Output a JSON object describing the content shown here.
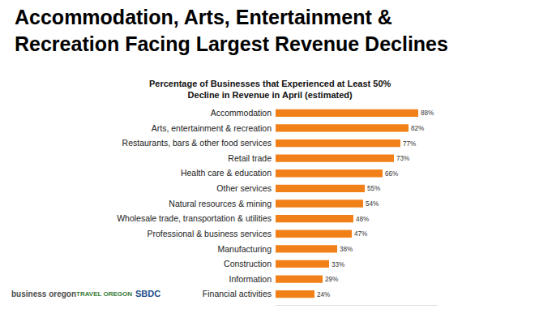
{
  "chart_data": {
    "type": "bar",
    "orientation": "horizontal",
    "title": [
      "Accommodation, Arts, Entertainment &",
      "Recreation Facing Largest Revenue Declines"
    ],
    "subtitle": [
      "Percentage of Businesses that Experienced at Least 50%",
      "Decline in Revenue in April (estimated)"
    ],
    "categories": [
      "Accommodation",
      "Arts, entertainment & recreation",
      "Restaurants, bars & other food services",
      "Retail trade",
      "Health care & education",
      "Other services",
      "Natural resources & mining",
      "Wholesale trade, transportation & utilities",
      "Professional & business services",
      "Manufacturing",
      "Construction",
      "Information",
      "Financial activities"
    ],
    "values": [
      88,
      82,
      77,
      73,
      66,
      55,
      54,
      48,
      47,
      38,
      33,
      29,
      24
    ],
    "value_labels": [
      "88%",
      "82%",
      "77%",
      "73%",
      "66%",
      "55%",
      "54%",
      "48%",
      "47%",
      "38%",
      "33%",
      "29%",
      "24%"
    ],
    "data_labels": true,
    "color": "#f28019",
    "xlim": [
      0,
      100
    ],
    "grid": false,
    "tick_labels": "y",
    "annotations": [
      "business oregon",
      "TRAVEL OREGON",
      "SBDC"
    ]
  }
}
